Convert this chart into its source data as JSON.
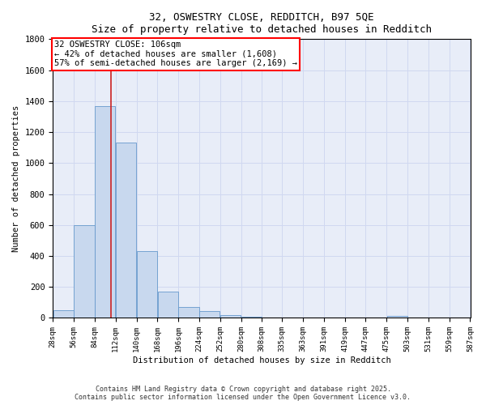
{
  "title_line1": "32, OSWESTRY CLOSE, REDDITCH, B97 5QE",
  "title_line2": "Size of property relative to detached houses in Redditch",
  "xlabel": "Distribution of detached houses by size in Redditch",
  "ylabel": "Number of detached properties",
  "bin_edges": [
    28,
    56,
    84,
    112,
    140,
    168,
    196,
    224,
    252,
    280,
    308,
    335,
    363,
    391,
    419,
    447,
    475,
    503,
    531,
    559,
    587
  ],
  "bar_heights": [
    50,
    600,
    1370,
    1130,
    430,
    170,
    70,
    45,
    20,
    10,
    0,
    0,
    0,
    0,
    0,
    0,
    15,
    0,
    0,
    0,
    0
  ],
  "bar_color": "#c8d8ee",
  "bar_edge_color": "#6699cc",
  "grid_color": "#d0d8f0",
  "background_color": "#e8edf8",
  "red_line_x": 106,
  "ylim": [
    0,
    1800
  ],
  "yticks": [
    0,
    200,
    400,
    600,
    800,
    1000,
    1200,
    1400,
    1600,
    1800
  ],
  "annotation_text": "32 OSWESTRY CLOSE: 106sqm\n← 42% of detached houses are smaller (1,608)\n57% of semi-detached houses are larger (2,169) →",
  "footer_line1": "Contains HM Land Registry data © Crown copyright and database right 2025.",
  "footer_line2": "Contains public sector information licensed under the Open Government Licence v3.0."
}
